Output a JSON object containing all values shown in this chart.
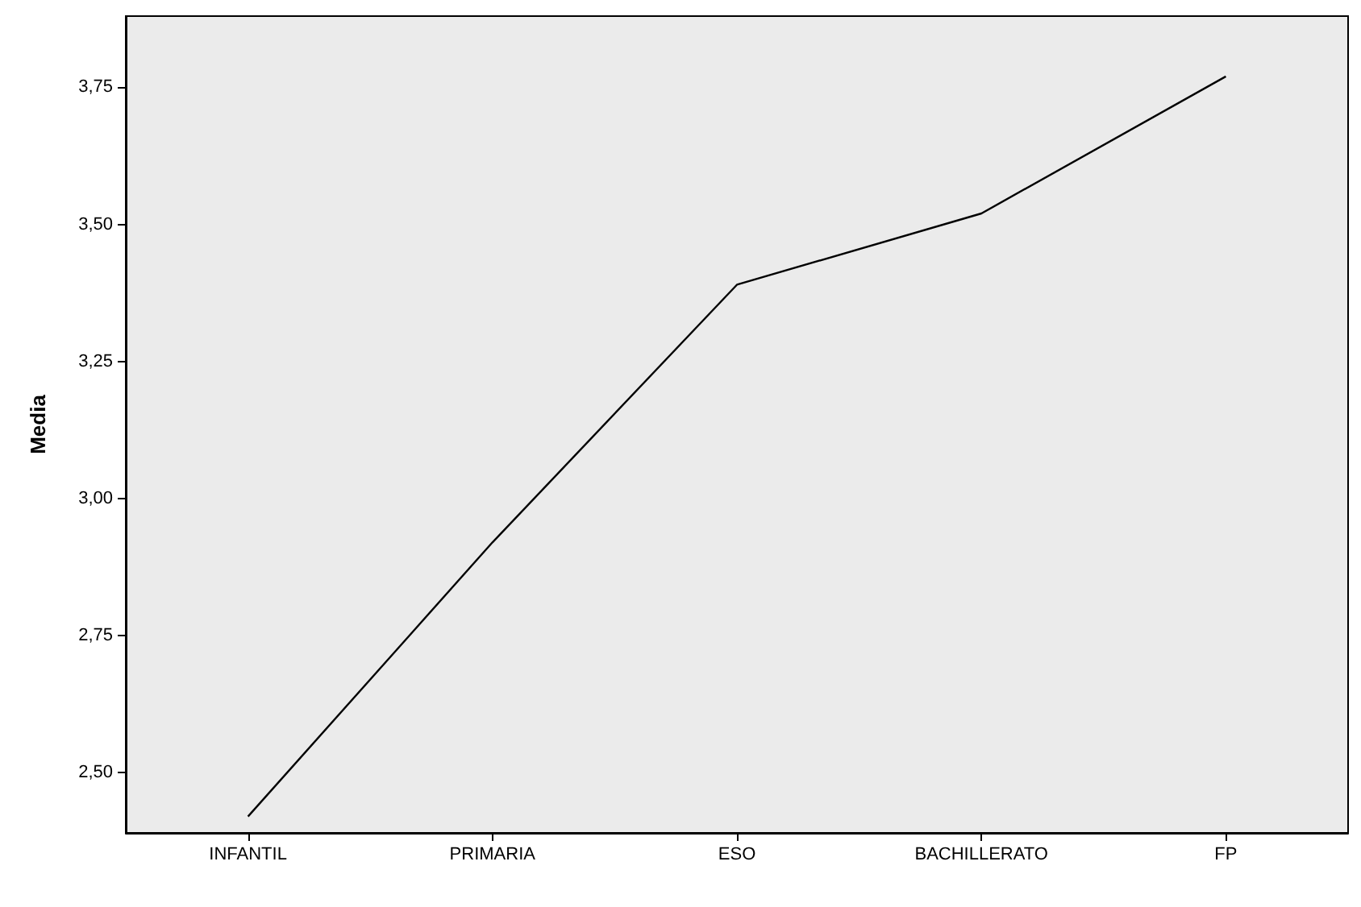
{
  "chart_data": {
    "type": "line",
    "ylabel": "Media",
    "categories": [
      "INFANTIL",
      "PRIMARIA",
      "ESO",
      "BACHILLERATO",
      "FP"
    ],
    "series": [
      {
        "color": "#000000",
        "values": [
          2.42,
          2.92,
          3.39,
          3.52,
          3.77
        ]
      }
    ],
    "ylim": [
      2.39,
      3.88
    ],
    "yticks": [
      {
        "value": 2.5,
        "label": "2,50"
      },
      {
        "value": 2.75,
        "label": "2,75"
      },
      {
        "value": 3.0,
        "label": "3,00"
      },
      {
        "value": 3.25,
        "label": "3,25"
      },
      {
        "value": 3.5,
        "label": "3,50"
      },
      {
        "value": 3.75,
        "label": "3,75"
      }
    ],
    "grid": false,
    "marker": "none",
    "line_style": "solid"
  }
}
